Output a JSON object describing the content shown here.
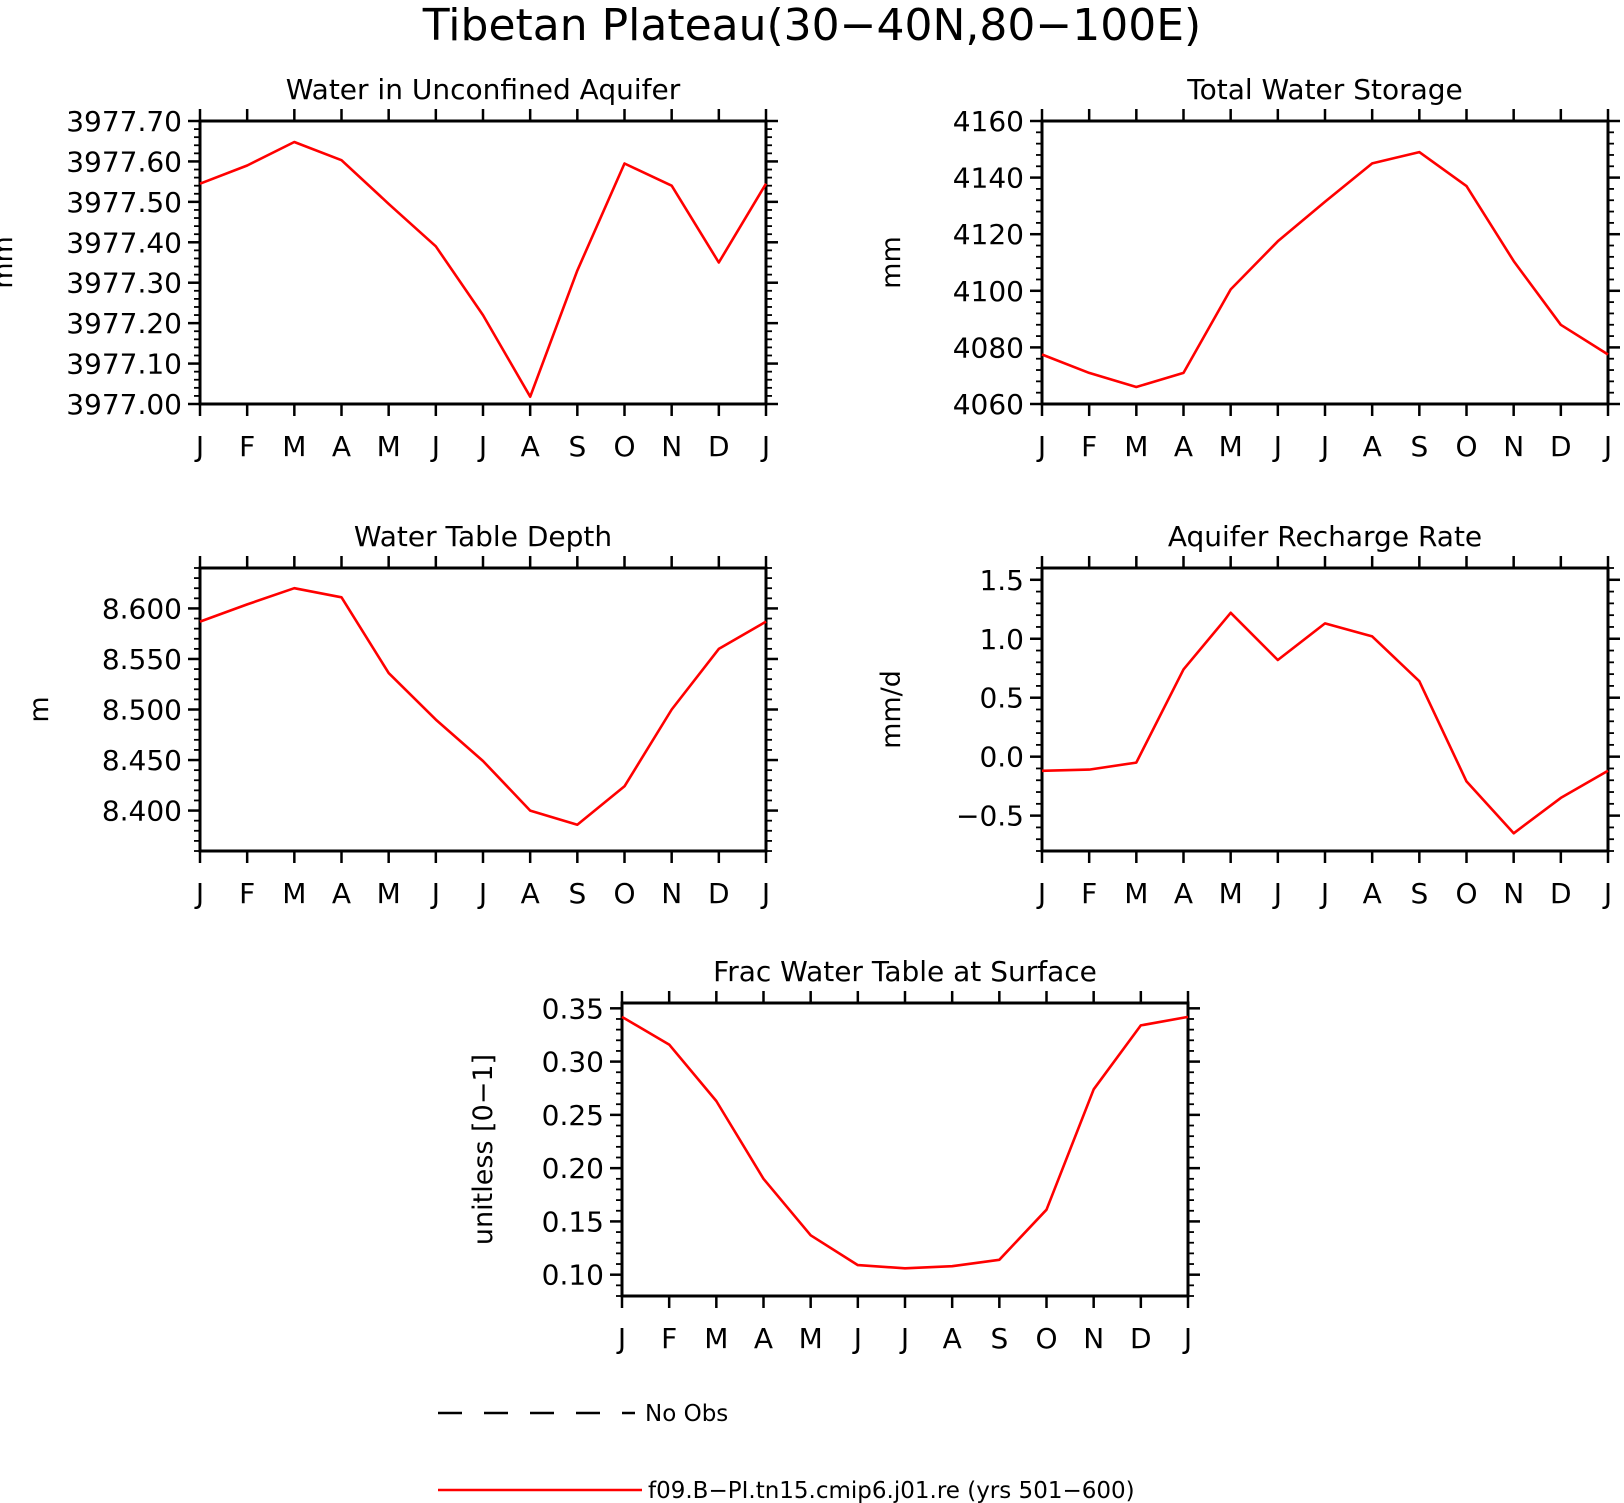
{
  "figure": {
    "title": "Tibetan Plateau(30−40N,80−100E)"
  },
  "colors": {
    "series": "#ff0000",
    "obs": "#000000",
    "axes": "#000000"
  },
  "legend": {
    "items": [
      {
        "label": "No Obs",
        "style": "dashed",
        "color": "#000000"
      },
      {
        "label": "f09.B−PI.tn15.cmip6.j01.re (yrs 501−600)",
        "style": "solid",
        "color": "#ff0000"
      }
    ]
  },
  "chart_data": [
    {
      "type": "line",
      "title": "Water in Unconfined Aquifer",
      "xlabel": "",
      "ylabel": "mm",
      "x": [
        "J",
        "F",
        "M",
        "A",
        "M",
        "J",
        "J",
        "A",
        "S",
        "O",
        "N",
        "D",
        "J"
      ],
      "ylim": [
        3977.0,
        3977.7
      ],
      "yticks": [
        3977.0,
        3977.1,
        3977.2,
        3977.3,
        3977.4,
        3977.5,
        3977.6,
        3977.7
      ],
      "yticklabels": [
        "3977.00",
        "3977.10",
        "3977.20",
        "3977.30",
        "3977.40",
        "3977.50",
        "3977.60",
        "3977.70"
      ],
      "series": [
        {
          "name": "f09.B−PI.tn15.cmip6.j01.re (yrs 501−600)",
          "values": [
            3977.545,
            3977.59,
            3977.648,
            3977.603,
            3977.495,
            3977.39,
            3977.22,
            3977.018,
            3977.33,
            3977.595,
            3977.54,
            3977.35,
            3977.545
          ]
        }
      ]
    },
    {
      "type": "line",
      "title": "Total Water Storage",
      "xlabel": "",
      "ylabel": "mm",
      "x": [
        "J",
        "F",
        "M",
        "A",
        "M",
        "J",
        "J",
        "A",
        "S",
        "O",
        "N",
        "D",
        "J"
      ],
      "ylim": [
        4060,
        4160
      ],
      "yticks": [
        4060,
        4080,
        4100,
        4120,
        4140,
        4160
      ],
      "yticklabels": [
        "4060",
        "4080",
        "4100",
        "4120",
        "4140",
        "4160"
      ],
      "series": [
        {
          "name": "f09.B−PI.tn15.cmip6.j01.re (yrs 501−600)",
          "values": [
            4077.5,
            4071,
            4066,
            4071,
            4100.5,
            4117.5,
            4131.5,
            4145,
            4149,
            4137,
            4110.5,
            4088,
            4077.5
          ]
        }
      ]
    },
    {
      "type": "line",
      "title": "Water Table Depth",
      "xlabel": "",
      "ylabel": "m",
      "x": [
        "J",
        "F",
        "M",
        "A",
        "M",
        "J",
        "J",
        "A",
        "S",
        "O",
        "N",
        "D",
        "J"
      ],
      "ylim": [
        8.36,
        8.64
      ],
      "yticks": [
        8.4,
        8.45,
        8.5,
        8.55,
        8.6
      ],
      "yticklabels": [
        "8.400",
        "8.450",
        "8.500",
        "8.550",
        "8.600"
      ],
      "series": [
        {
          "name": "f09.B−PI.tn15.cmip6.j01.re (yrs 501−600)",
          "values": [
            8.587,
            8.604,
            8.62,
            8.611,
            8.536,
            8.49,
            8.449,
            8.4,
            8.386,
            8.424,
            8.5,
            8.56,
            8.587
          ]
        }
      ]
    },
    {
      "type": "line",
      "title": "Aquifer Recharge Rate",
      "xlabel": "",
      "ylabel": "mm/d",
      "x": [
        "J",
        "F",
        "M",
        "A",
        "M",
        "J",
        "J",
        "A",
        "S",
        "O",
        "N",
        "D",
        "J"
      ],
      "ylim": [
        -0.8,
        1.6
      ],
      "yticks": [
        -0.5,
        0.0,
        0.5,
        1.0,
        1.5
      ],
      "yticklabels": [
        "−0.5",
        "0.0",
        "0.5",
        "1.0",
        "1.5"
      ],
      "series": [
        {
          "name": "f09.B−PI.tn15.cmip6.j01.re (yrs 501−600)",
          "values": [
            -0.12,
            -0.11,
            -0.05,
            0.74,
            1.22,
            0.82,
            1.13,
            1.02,
            0.64,
            -0.21,
            -0.65,
            -0.35,
            -0.12
          ]
        }
      ]
    },
    {
      "type": "line",
      "title": "Frac Water Table at Surface",
      "xlabel": "",
      "ylabel": "unitless [0−1]",
      "x": [
        "J",
        "F",
        "M",
        "A",
        "M",
        "J",
        "J",
        "A",
        "S",
        "O",
        "N",
        "D",
        "J"
      ],
      "ylim": [
        0.08,
        0.355
      ],
      "yticks": [
        0.1,
        0.15,
        0.2,
        0.25,
        0.3,
        0.35
      ],
      "yticklabels": [
        "0.10",
        "0.15",
        "0.20",
        "0.25",
        "0.30",
        "0.35"
      ],
      "series": [
        {
          "name": "f09.B−PI.tn15.cmip6.j01.re (yrs 501−600)",
          "values": [
            0.342,
            0.316,
            0.263,
            0.19,
            0.137,
            0.109,
            0.106,
            0.108,
            0.114,
            0.161,
            0.274,
            0.334,
            0.342
          ]
        }
      ]
    }
  ]
}
